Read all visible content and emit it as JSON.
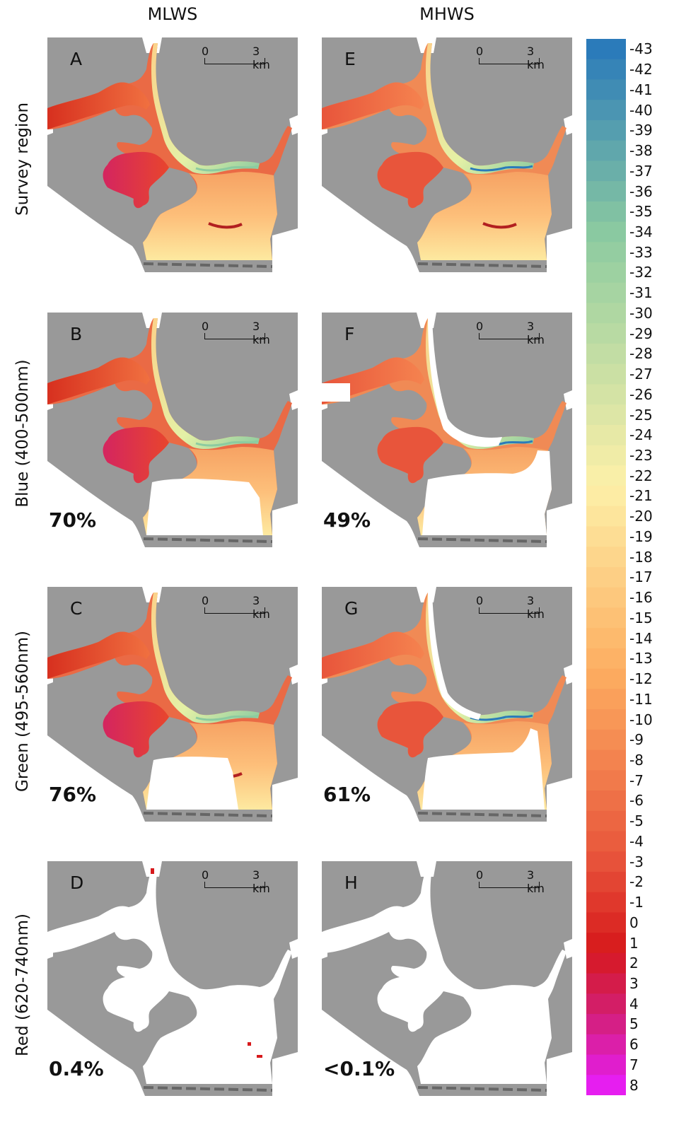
{
  "columns": [
    "MLWS",
    "MHWS"
  ],
  "rows": [
    "Survey region",
    "Blue (400-500nm)",
    "Green (495-560nm)",
    "Red (620-740nm)"
  ],
  "scale_bar": {
    "zero": "0",
    "end": "3 km"
  },
  "panels": [
    {
      "letter": "A",
      "tide": "MLWS",
      "row": "Survey region",
      "percent": "",
      "mode": "full",
      "variant": "low"
    },
    {
      "letter": "E",
      "tide": "MHWS",
      "row": "Survey region",
      "percent": "",
      "mode": "full",
      "variant": "high"
    },
    {
      "letter": "B",
      "tide": "MLWS",
      "row": "Blue (400-500nm)",
      "percent": "70%",
      "mode": "blue",
      "variant": "low"
    },
    {
      "letter": "F",
      "tide": "MHWS",
      "row": "Blue (400-500nm)",
      "percent": "49%",
      "mode": "blue",
      "variant": "high"
    },
    {
      "letter": "C",
      "tide": "MLWS",
      "row": "Green (495-560nm)",
      "percent": "76%",
      "mode": "green",
      "variant": "low"
    },
    {
      "letter": "G",
      "tide": "MHWS",
      "row": "Green (495-560nm)",
      "percent": "61%",
      "mode": "green",
      "variant": "high"
    },
    {
      "letter": "D",
      "tide": "MLWS",
      "row": "Red (620-740nm)",
      "percent": "0.4%",
      "mode": "red",
      "variant": "low"
    },
    {
      "letter": "H",
      "tide": "MHWS",
      "row": "Red (620-740nm)",
      "percent": "<0.1%",
      "mode": "red",
      "variant": "high"
    }
  ],
  "legend": {
    "labels": [
      "-43",
      "-42",
      "-41",
      "-40",
      "-39",
      "-38",
      "-37",
      "-36",
      "-35",
      "-34",
      "-33",
      "-32",
      "-31",
      "-30",
      "-29",
      "-28",
      "-27",
      "-26",
      "-25",
      "-24",
      "-23",
      "-22",
      "-21",
      "-20",
      "-19",
      "-18",
      "-17",
      "-16",
      "-15",
      "-14",
      "-13",
      "-12",
      "-11",
      "-10",
      "-9",
      "-8",
      "-7",
      "-6",
      "-5",
      "-4",
      "-3",
      "-2",
      "-1",
      "0",
      "1",
      "2",
      "3",
      "4",
      "5",
      "6",
      "7",
      "8"
    ],
    "colors": {
      "deep": "#2b7bba",
      "mid": "#8ccba0",
      "shallow": "#fdf0a8",
      "light": "#fdae61",
      "medium": "#e8553b",
      "datum": "#d7191c",
      "high": "#d21f72",
      "top": "#e61ef0"
    }
  },
  "colors": {
    "land": "#999999",
    "uncovered": "#ffffff",
    "transect": "#666666",
    "dune": "#b22020"
  }
}
